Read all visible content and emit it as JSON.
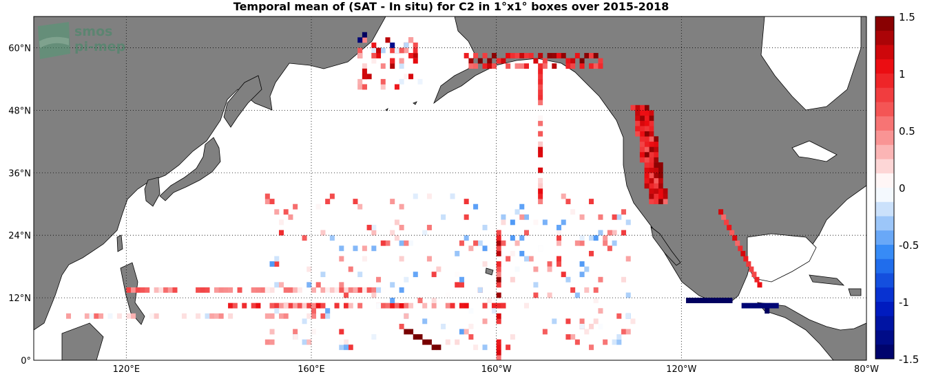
{
  "title": "Temporal mean of (SAT - In situ) for C2 in 1°x1° boxes over 2015-2018",
  "logo": {
    "line1": "smos",
    "line2": "pi-mep"
  },
  "map": {
    "lon_range": [
      100,
      280
    ],
    "lat_range": [
      0,
      66
    ],
    "x_ticks": [
      {
        "lon": 120,
        "label": "120°E"
      },
      {
        "lon": 160,
        "label": "160°E"
      },
      {
        "lon": 200,
        "label": "160°W"
      },
      {
        "lon": 240,
        "label": "120°W"
      },
      {
        "lon": 280,
        "label": "80°W"
      }
    ],
    "y_ticks": [
      {
        "lat": 0,
        "label": "0°"
      },
      {
        "lat": 12,
        "label": "12°N"
      },
      {
        "lat": 24,
        "label": "24°N"
      },
      {
        "lat": 36,
        "label": "36°N"
      },
      {
        "lat": 48,
        "label": "48°N"
      },
      {
        "lat": 60,
        "label": "60°N"
      }
    ],
    "land_color": "#808080",
    "grid": true
  },
  "colorbar": {
    "ticks": [
      "1.5",
      "1",
      "0.5",
      "0",
      "-0.5",
      "-1",
      "-1.5"
    ],
    "min": -1.5,
    "max": 1.5
  }
}
